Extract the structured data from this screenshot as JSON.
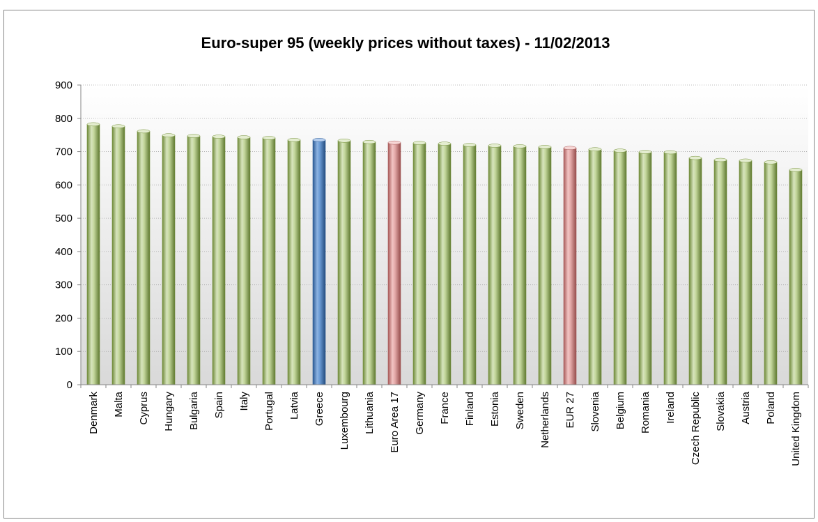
{
  "chart_data": {
    "type": "bar",
    "title": "Euro-super 95 (weekly prices without taxes) - 11/02/2013",
    "xlabel": "",
    "ylabel": "",
    "ylim": [
      0,
      900
    ],
    "yticks": [
      0,
      100,
      200,
      300,
      400,
      500,
      600,
      700,
      800,
      900
    ],
    "grid": true,
    "legend": "none",
    "categories": [
      "Denmark",
      "Malta",
      "Cyprus",
      "Hungary",
      "Bulgaria",
      "Spain",
      "Italy",
      "Portugal",
      "Latvia",
      "Greece",
      "Luxembourg",
      "Lithuania",
      "Euro Area 17",
      "Germany",
      "France",
      "Finland",
      "Estonia",
      "Sweden",
      "Netherlands",
      "EUR 27",
      "Slovenia",
      "Belgium",
      "Romania",
      "Ireland",
      "Czech Republic",
      "Slovakia",
      "Austria",
      "Poland",
      "United Kingdom"
    ],
    "values": [
      782,
      776,
      761,
      749,
      747,
      745,
      743,
      741,
      735,
      735,
      733,
      729,
      727,
      726,
      724,
      720,
      718,
      716,
      714,
      711,
      707,
      703,
      699,
      698,
      681,
      675,
      673,
      668,
      645
    ],
    "highlight": {
      "Greece": "#4f81bd",
      "Euro Area 17": "#d99594",
      "EUR 27": "#d99594"
    },
    "colors": {
      "default_bar": "#9bbb59",
      "highlight_blue": "#4f81bd",
      "highlight_red": "#d99594"
    }
  }
}
